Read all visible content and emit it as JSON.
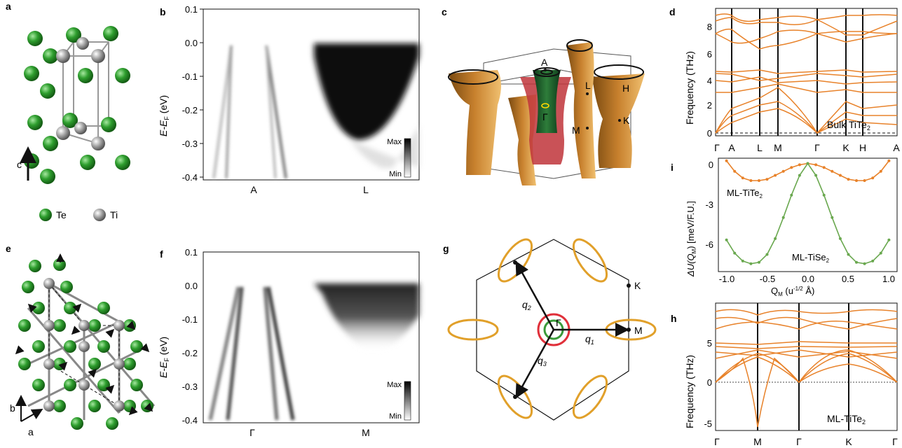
{
  "panels": {
    "a": {
      "letter": "a",
      "axis_label": "c",
      "legend": [
        {
          "label": "Te",
          "color": "#2e9e2e"
        },
        {
          "label": "Ti",
          "color": "#9a9a9a"
        }
      ]
    },
    "b": {
      "letter": "b",
      "ylabel_main": "E-E",
      "ylabel_sub": "F",
      "ylabel_unit": " (eV)",
      "yticks": [
        "0.1",
        "0.0",
        "-0.1",
        "-0.2",
        "-0.3",
        "-0.4"
      ],
      "xticks": [
        "A",
        "L"
      ],
      "colorbar": {
        "max": "Max",
        "min": "Min"
      }
    },
    "c": {
      "letter": "c",
      "points": [
        "A",
        "L",
        "H",
        "Γ",
        "M",
        "K"
      ]
    },
    "d": {
      "letter": "d",
      "ylabel": "Frequency (THz)",
      "yticks": [
        "0",
        "2",
        "4",
        "6",
        "8"
      ],
      "xticks": [
        "Γ",
        "A",
        "L",
        "M",
        "Γ",
        "K",
        "H",
        "A"
      ],
      "label_main": "Bulk TiTe",
      "label_sub": "2"
    },
    "e": {
      "letter": "e",
      "axis_b": "b",
      "axis_a": "a"
    },
    "f": {
      "letter": "f",
      "ylabel_main": "E-E",
      "ylabel_sub": "F",
      "ylabel_unit": " (eV)",
      "yticks": [
        "0.1",
        "0.0",
        "-0.1",
        "-0.2",
        "-0.3",
        "-0.4"
      ],
      "xticks": [
        "Γ",
        "M"
      ],
      "colorbar": {
        "max": "Max",
        "min": "Min"
      }
    },
    "g": {
      "letter": "g",
      "points": [
        "Γ",
        "M",
        "K"
      ],
      "vectors": [
        {
          "q": "q",
          "sub": "1"
        },
        {
          "q": "q",
          "sub": "2"
        },
        {
          "q": "q",
          "sub": "3"
        }
      ]
    },
    "h": {
      "letter": "h",
      "ylabel": "Frequency (THz)",
      "yticks": [
        "5",
        "0",
        "-5"
      ],
      "xticks": [
        "Γ",
        "M",
        "Γ",
        "K",
        "Γ"
      ],
      "label_main": "ML-TiTe",
      "label_sub": "2"
    },
    "i": {
      "letter": "i",
      "ylabel_pre": "ΔU(Q",
      "ylabel_sub": "M",
      "ylabel_post": ") [meV/F.U.]",
      "xlabel_pre": "Q",
      "xlabel_sub": "M",
      "xlabel_mid": " (u",
      "xlabel_sup": "-1/2",
      "xlabel_post": " Å)",
      "yticks": [
        "0",
        "-3",
        "-6"
      ],
      "xticks": [
        "-1.0",
        "-0.5",
        "0.0",
        "0.5",
        "1.0"
      ],
      "series": [
        {
          "name_main": "ML-TiTe",
          "name_sub": "2",
          "color": "#e8822a"
        },
        {
          "name_main": "ML-TiSe",
          "name_sub": "2",
          "color": "#6aa84f"
        }
      ]
    }
  },
  "chart_data": [
    {
      "type": "line",
      "panel": "i",
      "x": [
        -1.0,
        -0.9,
        -0.8,
        -0.7,
        -0.6,
        -0.5,
        -0.4,
        -0.3,
        -0.2,
        -0.1,
        0.0,
        0.1,
        0.2,
        0.3,
        0.4,
        0.5,
        0.6,
        0.7,
        0.8,
        0.9,
        1.0
      ],
      "series": [
        {
          "name": "ML-TiTe2",
          "values": [
            0.2,
            -0.6,
            -1.1,
            -1.3,
            -1.3,
            -1.2,
            -0.9,
            -0.6,
            -0.3,
            -0.1,
            0.0,
            -0.1,
            -0.3,
            -0.6,
            -0.9,
            -1.2,
            -1.3,
            -1.3,
            -1.1,
            -0.6,
            0.2
          ]
        },
        {
          "name": "ML-TiSe2",
          "values": [
            -5.8,
            -6.8,
            -7.4,
            -7.6,
            -7.5,
            -6.9,
            -5.7,
            -4.1,
            -2.4,
            -0.9,
            0.0,
            -0.9,
            -2.4,
            -4.1,
            -5.7,
            -6.9,
            -7.5,
            -7.6,
            -7.4,
            -6.8,
            -5.8
          ]
        }
      ],
      "xlim": [
        -1.1,
        1.1
      ],
      "ylim": [
        -8.2,
        0.4
      ]
    }
  ]
}
